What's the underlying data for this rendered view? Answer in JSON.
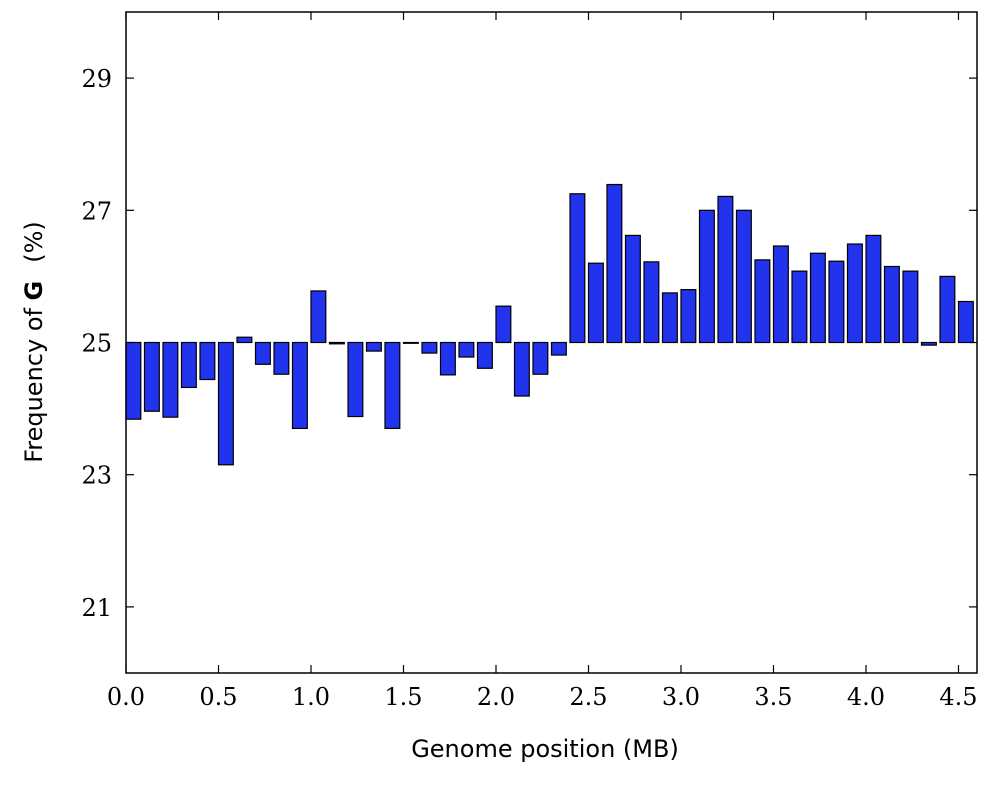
{
  "chart_data": {
    "type": "bar",
    "xlabel": "Genome position (MB)",
    "ylabel": "Frequency of G (%)",
    "ylabel_parts": [
      "Frequency of ",
      "G",
      "(%)"
    ],
    "xlim": [
      0,
      4.6
    ],
    "ylim": [
      20,
      30
    ],
    "baseline": 25,
    "bar_width": 0.08,
    "xticks": [
      0.0,
      0.5,
      1.0,
      1.5,
      2.0,
      2.5,
      3.0,
      3.5,
      4.0,
      4.5
    ],
    "xtick_labels": [
      "0.0",
      "0.5",
      "1.0",
      "1.5",
      "2.0",
      "2.5",
      "3.0",
      "3.5",
      "4.0",
      "4.5"
    ],
    "yticks": [
      21,
      23,
      25,
      27,
      29
    ],
    "ytick_labels": [
      "21",
      "23",
      "25",
      "27",
      "29"
    ],
    "x": [
      0.0,
      0.1,
      0.2,
      0.3,
      0.4,
      0.5,
      0.6,
      0.7,
      0.8,
      0.9,
      1.0,
      1.1,
      1.2,
      1.3,
      1.4,
      1.5,
      1.6,
      1.7,
      1.8,
      1.9,
      2.0,
      2.1,
      2.2,
      2.3,
      2.4,
      2.5,
      2.6,
      2.7,
      2.8,
      2.9,
      3.0,
      3.1,
      3.2,
      3.3,
      3.4,
      3.5,
      3.6,
      3.7,
      3.8,
      3.9,
      4.0,
      4.1,
      4.2,
      4.3,
      4.4,
      4.5
    ],
    "values": [
      23.84,
      23.96,
      23.87,
      24.32,
      24.44,
      23.15,
      25.08,
      24.67,
      24.52,
      23.7,
      25.78,
      24.98,
      23.88,
      24.87,
      23.7,
      24.99,
      24.84,
      24.51,
      24.78,
      24.61,
      25.55,
      24.19,
      24.52,
      24.81,
      27.25,
      26.2,
      27.39,
      26.62,
      26.22,
      25.75,
      25.8,
      27.0,
      27.21,
      27.0,
      26.25,
      26.46,
      26.08,
      26.35,
      26.23,
      26.49,
      26.62,
      26.15,
      26.08,
      24.96,
      26.0,
      25.62
    ],
    "grid": false,
    "legend": "none"
  }
}
